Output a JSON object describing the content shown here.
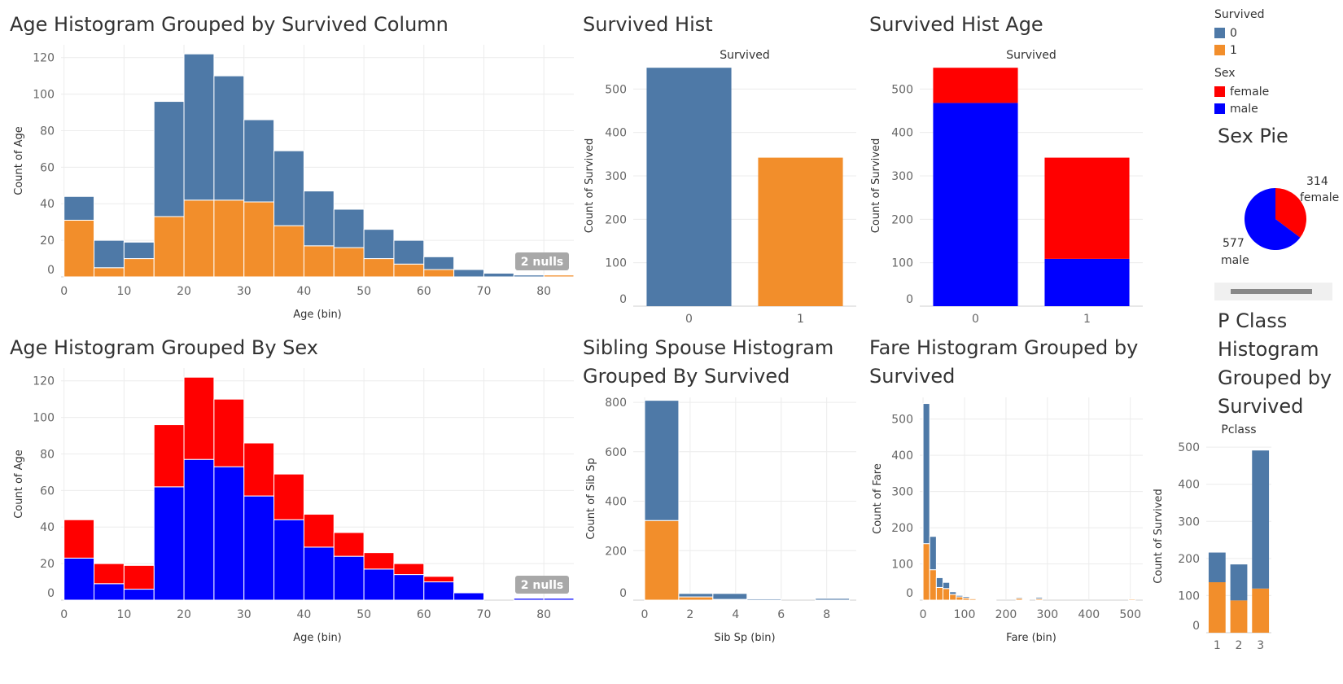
{
  "titles": {
    "age_survived": "Age Histogram Grouped by Survived Column",
    "age_sex": "Age Histogram Grouped By Sex",
    "survived_hist": "Survived Hist",
    "survived_hist_age": "Survived Hist Age",
    "sib_sp": [
      "Sibling Spouse Histogram",
      "Grouped By Survived"
    ],
    "fare": [
      "Fare Histogram Grouped by",
      "Survived"
    ],
    "sex_pie": "Sex Pie",
    "pclass": [
      "P Class",
      "Histogram",
      "Grouped by",
      "Survived"
    ]
  },
  "legend": {
    "survived_title": "Survived",
    "survived_items": [
      {
        "label": "0",
        "color": "#4e79a7"
      },
      {
        "label": "1",
        "color": "#f28e2b"
      }
    ],
    "sex_title": "Sex",
    "sex_items": [
      {
        "label": "female",
        "color": "#ff0000"
      },
      {
        "label": "male",
        "color": "#0000ff"
      }
    ]
  },
  "chart_data": [
    {
      "id": "age_survived",
      "type": "bar",
      "stacked": true,
      "xlabel": "Age (bin)",
      "ylabel": "Count of Age",
      "bin_width": 5,
      "bins_start": [
        0,
        5,
        10,
        15,
        20,
        25,
        30,
        35,
        40,
        45,
        50,
        55,
        60,
        65,
        70,
        75,
        80
      ],
      "xticks": [
        0,
        10,
        20,
        30,
        40,
        50,
        60,
        70,
        80
      ],
      "yticks": [
        0,
        20,
        40,
        60,
        80,
        100,
        120
      ],
      "ylim": [
        0,
        127
      ],
      "null_badge": "2 nulls",
      "series": [
        {
          "name": "1",
          "color": "#f28e2b",
          "values": [
            31,
            5,
            10,
            33,
            42,
            42,
            41,
            28,
            17,
            16,
            10,
            7,
            4,
            0,
            0,
            0,
            1
          ]
        },
        {
          "name": "0",
          "color": "#4e79a7",
          "values": [
            13,
            15,
            9,
            63,
            80,
            68,
            45,
            41,
            30,
            21,
            16,
            13,
            7,
            4,
            2,
            1,
            0
          ]
        }
      ]
    },
    {
      "id": "age_sex",
      "type": "bar",
      "stacked": true,
      "xlabel": "Age (bin)",
      "ylabel": "Count of Age",
      "bin_width": 5,
      "bins_start": [
        0,
        5,
        10,
        15,
        20,
        25,
        30,
        35,
        40,
        45,
        50,
        55,
        60,
        65,
        70,
        75,
        80
      ],
      "xticks": [
        0,
        10,
        20,
        30,
        40,
        50,
        60,
        70,
        80
      ],
      "yticks": [
        0,
        20,
        40,
        60,
        80,
        100,
        120
      ],
      "ylim": [
        0,
        127
      ],
      "null_badge": "2 nulls",
      "series": [
        {
          "name": "male",
          "color": "#0000ff",
          "values": [
            23,
            9,
            6,
            62,
            77,
            73,
            57,
            44,
            29,
            24,
            17,
            14,
            10,
            4,
            0,
            1,
            1
          ]
        },
        {
          "name": "female",
          "color": "#ff0000",
          "values": [
            21,
            11,
            13,
            34,
            45,
            37,
            29,
            25,
            18,
            13,
            9,
            6,
            3,
            0,
            0,
            0,
            0
          ]
        }
      ]
    },
    {
      "id": "survived_hist",
      "type": "bar",
      "column_title": "Survived",
      "ylabel": "Count of Survived",
      "categories": [
        "0",
        "1"
      ],
      "colors": [
        "#4e79a7",
        "#f28e2b"
      ],
      "values": [
        549,
        342
      ],
      "yticks": [
        0,
        100,
        200,
        300,
        400,
        500
      ],
      "ylim": [
        0,
        555
      ]
    },
    {
      "id": "survived_hist_age",
      "type": "bar",
      "stacked": true,
      "column_title": "Survived",
      "ylabel": "Count of Survived",
      "categories": [
        "0",
        "1"
      ],
      "yticks": [
        0,
        100,
        200,
        300,
        400,
        500
      ],
      "ylim": [
        0,
        555
      ],
      "series": [
        {
          "name": "male",
          "color": "#0000ff",
          "values": [
            468,
            109
          ]
        },
        {
          "name": "female",
          "color": "#ff0000",
          "values": [
            81,
            233
          ]
        }
      ]
    },
    {
      "id": "sib_sp",
      "type": "bar",
      "stacked": true,
      "xlabel": "Sib Sp (bin)",
      "ylabel": "Count of Sib Sp",
      "bin_width": 1.5,
      "bins_start": [
        0,
        1.5,
        3,
        4.5,
        6,
        7.5
      ],
      "xticks": [
        0,
        2,
        4,
        6,
        8
      ],
      "yticks": [
        0,
        200,
        400,
        600,
        800
      ],
      "ylim": [
        0,
        820
      ],
      "series": [
        {
          "name": "1",
          "color": "#f28e2b",
          "values": [
            322,
            13,
            3,
            0,
            0,
            0
          ]
        },
        {
          "name": "0",
          "color": "#4e79a7",
          "values": [
            486,
            14,
            24,
            5,
            0,
            7
          ]
        }
      ]
    },
    {
      "id": "fare",
      "type": "bar",
      "stacked": true,
      "xlabel": "Fare (bin)",
      "ylabel": "Count of Fare",
      "bin_width": 16,
      "bins_start": [
        0,
        16,
        32,
        48,
        64,
        80,
        96,
        112,
        128,
        144,
        160,
        176,
        192,
        208,
        224,
        240,
        256,
        272,
        496
      ],
      "xticks": [
        0,
        100,
        200,
        300,
        400,
        500
      ],
      "yticks": [
        0,
        100,
        200,
        300,
        400,
        500
      ],
      "ylim": [
        0,
        560
      ],
      "series": [
        {
          "name": "1",
          "color": "#f28e2b",
          "values": [
            156,
            84,
            35,
            32,
            16,
            9,
            6,
            4,
            3,
            2,
            1,
            0,
            0,
            0,
            5,
            2,
            0,
            4,
            3
          ]
        },
        {
          "name": "0",
          "color": "#4e79a7",
          "values": [
            387,
            92,
            27,
            17,
            7,
            4,
            4,
            2,
            1,
            0,
            1,
            0,
            0,
            0,
            3,
            2,
            0,
            4,
            0
          ]
        }
      ]
    },
    {
      "id": "pclass",
      "type": "bar",
      "stacked": true,
      "column_title": "Pclass",
      "ylabel": "Count of Survived",
      "categories": [
        "1",
        "2",
        "3"
      ],
      "yticks": [
        0,
        100,
        200,
        300,
        400,
        500
      ],
      "ylim": [
        0,
        520
      ],
      "series": [
        {
          "name": "1",
          "color": "#f28e2b",
          "values": [
            136,
            87,
            119
          ]
        },
        {
          "name": "0",
          "color": "#4e79a7",
          "values": [
            80,
            97,
            372
          ]
        }
      ]
    },
    {
      "id": "sex_pie",
      "type": "pie",
      "slices": [
        {
          "label": "female",
          "value": 314,
          "color": "#ff0000"
        },
        {
          "label": "male",
          "value": 577,
          "color": "#0000ff"
        }
      ]
    }
  ]
}
